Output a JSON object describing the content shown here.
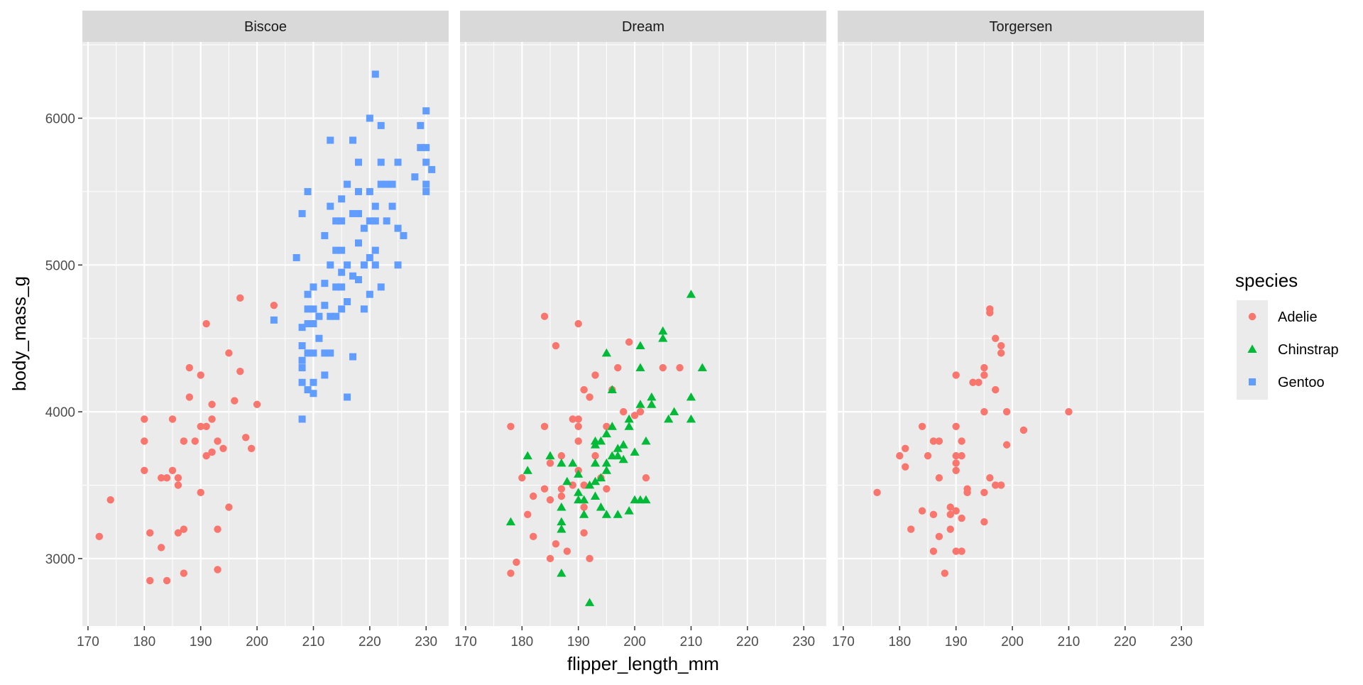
{
  "colors": {
    "Adelie": "#F8766D",
    "Chinstrap": "#00BA38",
    "Gentoo": "#619CFF",
    "panel_background": "#EBEBEB",
    "strip_background": "#D9D9D9",
    "grid": "#FFFFFF"
  },
  "chart_data": {
    "type": "scatter",
    "facet_by": "island",
    "facets": [
      "Biscoe",
      "Dream",
      "Torgersen"
    ],
    "xlabel": "flipper_length_mm",
    "ylabel": "body_mass_g",
    "xlim": [
      169,
      234
    ],
    "ylim": [
      2540,
      6520
    ],
    "x_ticks": [
      170,
      180,
      190,
      200,
      210,
      220,
      230
    ],
    "y_ticks": [
      3000,
      4000,
      5000,
      6000
    ],
    "grid": true,
    "legend": {
      "title": "species",
      "position": "right",
      "entries": [
        {
          "name": "Adelie",
          "shape": "circle"
        },
        {
          "name": "Chinstrap",
          "shape": "triangle"
        },
        {
          "name": "Gentoo",
          "shape": "square"
        }
      ]
    },
    "series": [
      {
        "facet": "Biscoe",
        "name": "Adelie",
        "points": [
          [
            172,
            3150
          ],
          [
            174,
            3400
          ],
          [
            180,
            3950
          ],
          [
            180,
            3800
          ],
          [
            180,
            3600
          ],
          [
            181,
            3175
          ],
          [
            181,
            2850
          ],
          [
            183,
            3550
          ],
          [
            183,
            3075
          ],
          [
            184,
            3550
          ],
          [
            184,
            2850
          ],
          [
            185,
            3950
          ],
          [
            185,
            3600
          ],
          [
            186,
            3550
          ],
          [
            186,
            3500
          ],
          [
            186,
            3175
          ],
          [
            187,
            3800
          ],
          [
            187,
            3200
          ],
          [
            187,
            2900
          ],
          [
            188,
            4300
          ],
          [
            188,
            4100
          ],
          [
            189,
            3800
          ],
          [
            190,
            4250
          ],
          [
            190,
            3900
          ],
          [
            190,
            3450
          ],
          [
            191,
            4600
          ],
          [
            191,
            3900
          ],
          [
            191,
            3700
          ],
          [
            192,
            4050
          ],
          [
            192,
            3950
          ],
          [
            192,
            3725
          ],
          [
            193,
            3800
          ],
          [
            193,
            3200
          ],
          [
            193,
            2925
          ],
          [
            194,
            3750
          ],
          [
            195,
            4400
          ],
          [
            195,
            3350
          ],
          [
            196,
            4075
          ],
          [
            197,
            4775
          ],
          [
            197,
            4275
          ],
          [
            198,
            3825
          ],
          [
            199,
            3750
          ],
          [
            200,
            4050
          ],
          [
            203,
            4725
          ]
        ]
      },
      {
        "facet": "Biscoe",
        "name": "Gentoo",
        "points": [
          [
            203,
            4625
          ],
          [
            207,
            5050
          ],
          [
            208,
            5350
          ],
          [
            208,
            4575
          ],
          [
            208,
            4450
          ],
          [
            208,
            4350
          ],
          [
            208,
            4300
          ],
          [
            208,
            4200
          ],
          [
            208,
            3950
          ],
          [
            209,
            5500
          ],
          [
            209,
            4800
          ],
          [
            209,
            4700
          ],
          [
            209,
            4600
          ],
          [
            209,
            4400
          ],
          [
            209,
            4150
          ],
          [
            210,
            4850
          ],
          [
            210,
            4700
          ],
          [
            210,
            4600
          ],
          [
            210,
            4400
          ],
          [
            210,
            4200
          ],
          [
            210,
            4125
          ],
          [
            211,
            4650
          ],
          [
            211,
            4500
          ],
          [
            212,
            5200
          ],
          [
            212,
            4875
          ],
          [
            212,
            4725
          ],
          [
            212,
            4400
          ],
          [
            212,
            4250
          ],
          [
            213,
            5850
          ],
          [
            213,
            5400
          ],
          [
            213,
            5000
          ],
          [
            213,
            4650
          ],
          [
            213,
            4400
          ],
          [
            214,
            5300
          ],
          [
            214,
            5100
          ],
          [
            214,
            4850
          ],
          [
            214,
            4650
          ],
          [
            215,
            5450
          ],
          [
            215,
            5300
          ],
          [
            215,
            5100
          ],
          [
            215,
            4950
          ],
          [
            215,
            4850
          ],
          [
            215,
            4700
          ],
          [
            216,
            5550
          ],
          [
            216,
            5000
          ],
          [
            216,
            4750
          ],
          [
            216,
            4100
          ],
          [
            217,
            5850
          ],
          [
            217,
            5350
          ],
          [
            217,
            4925
          ],
          [
            217,
            4375
          ],
          [
            218,
            5700
          ],
          [
            218,
            5500
          ],
          [
            218,
            5350
          ],
          [
            218,
            5150
          ],
          [
            218,
            4900
          ],
          [
            219,
            5250
          ],
          [
            219,
            5000
          ],
          [
            219,
            4700
          ],
          [
            220,
            6000
          ],
          [
            220,
            5500
          ],
          [
            220,
            5300
          ],
          [
            220,
            5050
          ],
          [
            220,
            4800
          ],
          [
            221,
            6300
          ],
          [
            221,
            5400
          ],
          [
            221,
            5300
          ],
          [
            221,
            5100
          ],
          [
            221,
            5000
          ],
          [
            222,
            5950
          ],
          [
            222,
            5550
          ],
          [
            222,
            4850
          ],
          [
            222,
            5700
          ],
          [
            223,
            5550
          ],
          [
            223,
            5300
          ],
          [
            224,
            5400
          ],
          [
            224,
            5550
          ],
          [
            225,
            5700
          ],
          [
            225,
            5250
          ],
          [
            225,
            5000
          ],
          [
            226,
            5200
          ],
          [
            228,
            5600
          ],
          [
            229,
            5800
          ],
          [
            229,
            5950
          ],
          [
            230,
            6050
          ],
          [
            230,
            5800
          ],
          [
            230,
            5700
          ],
          [
            230,
            5550
          ],
          [
            230,
            5500
          ],
          [
            231,
            5650
          ]
        ]
      },
      {
        "facet": "Dream",
        "name": "Adelie",
        "points": [
          [
            178,
            3900
          ],
          [
            178,
            2900
          ],
          [
            179,
            2975
          ],
          [
            180,
            3550
          ],
          [
            181,
            3300
          ],
          [
            182,
            3150
          ],
          [
            182,
            3425
          ],
          [
            184,
            4650
          ],
          [
            184,
            3900
          ],
          [
            184,
            3475
          ],
          [
            185,
            3650
          ],
          [
            185,
            3400
          ],
          [
            185,
            3000
          ],
          [
            186,
            4450
          ],
          [
            186,
            3100
          ],
          [
            187,
            3700
          ],
          [
            187,
            3475
          ],
          [
            187,
            3425
          ],
          [
            188,
            3050
          ],
          [
            189,
            3950
          ],
          [
            189,
            3500
          ],
          [
            190,
            4600
          ],
          [
            190,
            3950
          ],
          [
            190,
            3800
          ],
          [
            190,
            3900
          ],
          [
            190,
            3600
          ],
          [
            191,
            4150
          ],
          [
            191,
            3500
          ],
          [
            191,
            3350
          ],
          [
            191,
            3175
          ],
          [
            192,
            4100
          ],
          [
            192,
            3000
          ],
          [
            193,
            4250
          ],
          [
            193,
            3700
          ],
          [
            194,
            3550
          ],
          [
            195,
            3900
          ],
          [
            195,
            3475
          ],
          [
            196,
            4150
          ],
          [
            197,
            4300
          ],
          [
            198,
            4000
          ],
          [
            199,
            4475
          ],
          [
            200,
            3975
          ],
          [
            201,
            4000
          ],
          [
            202,
            3550
          ],
          [
            205,
            4300
          ],
          [
            208,
            4300
          ]
        ]
      },
      {
        "facet": "Dream",
        "name": "Chinstrap",
        "points": [
          [
            178,
            3250
          ],
          [
            181,
            3700
          ],
          [
            181,
            3600
          ],
          [
            185,
            3700
          ],
          [
            187,
            3650
          ],
          [
            187,
            3350
          ],
          [
            187,
            3250
          ],
          [
            187,
            3200
          ],
          [
            187,
            2900
          ],
          [
            188,
            3525
          ],
          [
            189,
            3650
          ],
          [
            190,
            3575
          ],
          [
            190,
            3450
          ],
          [
            190,
            3400
          ],
          [
            191,
            3400
          ],
          [
            191,
            3300
          ],
          [
            192,
            3500
          ],
          [
            192,
            2700
          ],
          [
            193,
            3800
          ],
          [
            193,
            3775
          ],
          [
            193,
            3650
          ],
          [
            193,
            3525
          ],
          [
            193,
            3425
          ],
          [
            194,
            3800
          ],
          [
            194,
            3550
          ],
          [
            194,
            3350
          ],
          [
            195,
            4400
          ],
          [
            195,
            3850
          ],
          [
            195,
            3650
          ],
          [
            195,
            3600
          ],
          [
            195,
            3300
          ],
          [
            196,
            4150
          ],
          [
            196,
            3900
          ],
          [
            196,
            3700
          ],
          [
            197,
            3750
          ],
          [
            197,
            3700
          ],
          [
            197,
            3300
          ],
          [
            198,
            3775
          ],
          [
            198,
            3675
          ],
          [
            199,
            3950
          ],
          [
            199,
            3900
          ],
          [
            199,
            3325
          ],
          [
            200,
            3725
          ],
          [
            200,
            3400
          ],
          [
            201,
            4450
          ],
          [
            201,
            4300
          ],
          [
            201,
            4050
          ],
          [
            201,
            3400
          ],
          [
            202,
            3800
          ],
          [
            202,
            3400
          ],
          [
            203,
            4100
          ],
          [
            203,
            4050
          ],
          [
            205,
            4550
          ],
          [
            205,
            4500
          ],
          [
            206,
            3950
          ],
          [
            207,
            4000
          ],
          [
            210,
            4800
          ],
          [
            210,
            4100
          ],
          [
            210,
            3950
          ],
          [
            212,
            4300
          ]
        ]
      },
      {
        "facet": "Torgersen",
        "name": "Adelie",
        "points": [
          [
            176,
            3450
          ],
          [
            180,
            3700
          ],
          [
            181,
            3750
          ],
          [
            181,
            3625
          ],
          [
            182,
            3200
          ],
          [
            184,
            3900
          ],
          [
            184,
            3325
          ],
          [
            185,
            3700
          ],
          [
            186,
            3800
          ],
          [
            186,
            3050
          ],
          [
            186,
            3300
          ],
          [
            187,
            3800
          ],
          [
            187,
            3550
          ],
          [
            187,
            3150
          ],
          [
            188,
            2900
          ],
          [
            189,
            3300
          ],
          [
            189,
            3350
          ],
          [
            189,
            3200
          ],
          [
            190,
            4250
          ],
          [
            190,
            3900
          ],
          [
            190,
            3700
          ],
          [
            190,
            3650
          ],
          [
            190,
            3600
          ],
          [
            190,
            3325
          ],
          [
            190,
            3050
          ],
          [
            191,
            3800
          ],
          [
            191,
            3700
          ],
          [
            191,
            3275
          ],
          [
            191,
            3050
          ],
          [
            192,
            3450
          ],
          [
            192,
            3475
          ],
          [
            193,
            4200
          ],
          [
            194,
            4200
          ],
          [
            195,
            4300
          ],
          [
            195,
            4250
          ],
          [
            195,
            4000
          ],
          [
            195,
            3450
          ],
          [
            195,
            3250
          ],
          [
            196,
            4675
          ],
          [
            196,
            4700
          ],
          [
            196,
            3550
          ],
          [
            197,
            4500
          ],
          [
            197,
            4150
          ],
          [
            197,
            3500
          ],
          [
            198,
            4450
          ],
          [
            198,
            4400
          ],
          [
            198,
            3500
          ],
          [
            199,
            4000
          ],
          [
            199,
            3775
          ],
          [
            202,
            3875
          ],
          [
            210,
            4000
          ]
        ]
      }
    ]
  }
}
